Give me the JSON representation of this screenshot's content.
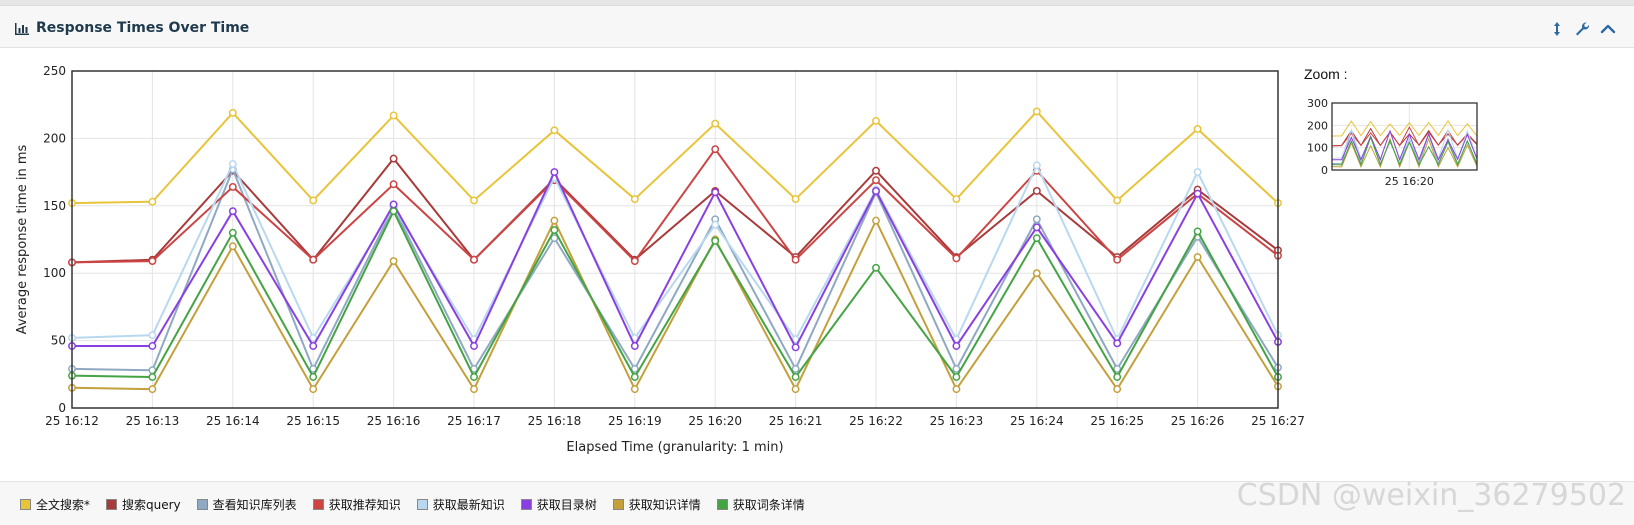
{
  "header": {
    "title": "Response Times Over Time",
    "icons": [
      "bar-chart-icon",
      "resize-vertical-icon",
      "wrench-icon",
      "chevron-up-icon"
    ]
  },
  "zoom": {
    "label": "Zoom :",
    "ylim": [
      0,
      300
    ],
    "yticks": [
      0,
      100,
      200,
      300
    ],
    "xtick": "25 16:20"
  },
  "watermark": "CSDN @weixin_36279502",
  "chart_data": {
    "type": "line",
    "title": "",
    "xlabel": "Elapsed Time (granularity: 1 min)",
    "ylabel": "Average response time in ms",
    "x": [
      "25 16:12",
      "25 16:13",
      "25 16:14",
      "25 16:15",
      "25 16:16",
      "25 16:17",
      "25 16:18",
      "25 16:19",
      "25 16:20",
      "25 16:21",
      "25 16:22",
      "25 16:23",
      "25 16:24",
      "25 16:25",
      "25 16:26",
      "25 16:27"
    ],
    "ylim": [
      0,
      250
    ],
    "yticks": [
      0,
      50,
      100,
      150,
      200,
      250
    ],
    "grid": true,
    "legend_position": "bottom",
    "series": [
      {
        "name": "全文搜索*",
        "color": "#e8c43a",
        "values": [
          152,
          153,
          219,
          154,
          217,
          154,
          206,
          155,
          211,
          155,
          213,
          155,
          220,
          154,
          207,
          152
        ]
      },
      {
        "name": "搜索query",
        "color": "#a83a3a",
        "values": [
          108,
          110,
          176,
          110,
          185,
          110,
          170,
          110,
          161,
          112,
          176,
          112,
          161,
          112,
          162,
          117
        ]
      },
      {
        "name": "查看知识库列表",
        "color": "#8fa9c3",
        "values": [
          29,
          28,
          177,
          29,
          149,
          29,
          126,
          29,
          140,
          29,
          160,
          29,
          140,
          29,
          127,
          30
        ]
      },
      {
        "name": "获取推荐知识",
        "color": "#cc4444",
        "values": [
          108,
          109,
          164,
          110,
          166,
          110,
          169,
          109,
          192,
          110,
          169,
          111,
          176,
          110,
          159,
          113
        ]
      },
      {
        "name": "获取最新知识",
        "color": "#b8d8f0",
        "values": [
          52,
          54,
          181,
          52,
          149,
          51,
          171,
          52,
          136,
          51,
          162,
          51,
          180,
          51,
          175,
          54
        ]
      },
      {
        "name": "获取目录树",
        "color": "#8a3fe0",
        "values": [
          46,
          46,
          146,
          46,
          151,
          46,
          175,
          46,
          160,
          45,
          161,
          46,
          134,
          48,
          159,
          49
        ]
      },
      {
        "name": "获取知识详情",
        "color": "#c4a03c",
        "values": [
          15,
          14,
          120,
          14,
          109,
          14,
          139,
          14,
          125,
          14,
          139,
          14,
          100,
          14,
          112,
          16
        ]
      },
      {
        "name": "获取词条详情",
        "color": "#44a444",
        "values": [
          24,
          23,
          130,
          23,
          146,
          23,
          132,
          23,
          124,
          23,
          104,
          23,
          126,
          23,
          131,
          23
        ]
      }
    ]
  }
}
